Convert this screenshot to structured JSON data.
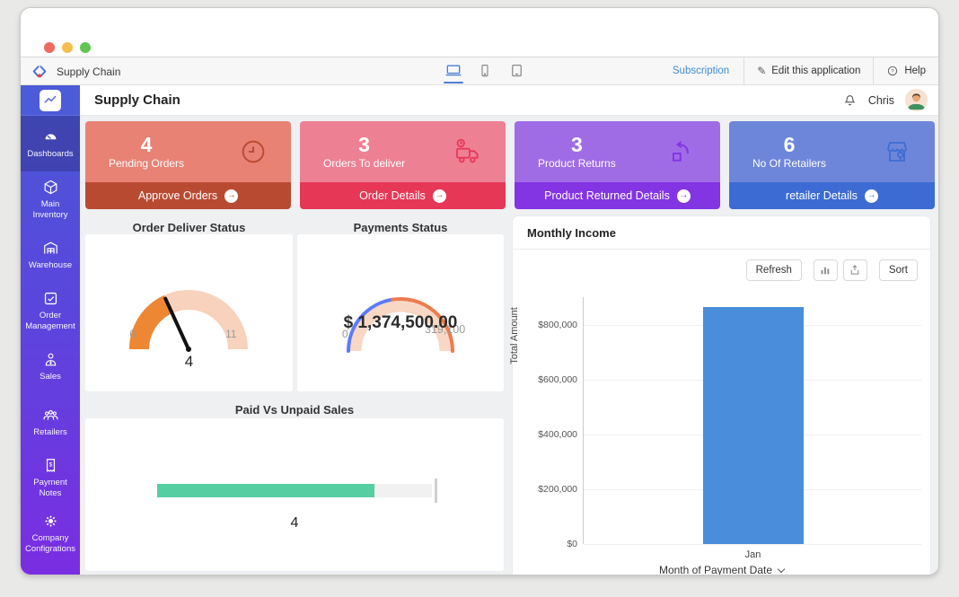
{
  "topbar": {
    "app_name": "Supply Chain",
    "subscription_label": "Subscription",
    "edit_label": "Edit this application",
    "help_label": "Help"
  },
  "header": {
    "title": "Supply Chain",
    "username": "Chris"
  },
  "sidebar": {
    "items": [
      {
        "label": "Dashboards",
        "icon": "gauge-icon",
        "active": true
      },
      {
        "label": "Main Inventory",
        "icon": "cube-icon",
        "active": false
      },
      {
        "label": "Warehouse",
        "icon": "warehouse-icon",
        "active": false
      },
      {
        "label": "Order Management",
        "icon": "checklist-icon",
        "active": false
      },
      {
        "label": "Sales",
        "icon": "sales-person-icon",
        "active": false
      },
      {
        "label": "Retailers",
        "icon": "people-group-icon",
        "active": false
      },
      {
        "label": "Payment Notes",
        "icon": "receipt-icon",
        "active": false
      },
      {
        "label": "Company Configrations",
        "icon": "gear-icon",
        "active": false
      }
    ]
  },
  "stat_cards": [
    {
      "value": "4",
      "label": "Pending Orders",
      "action_label": "Approve Orders",
      "icon": "clock-icon",
      "body_color": "#e88275",
      "footer_color": "#b94a32"
    },
    {
      "value": "3",
      "label": "Orders To deliver",
      "action_label": "Order Details",
      "icon": "delivery-truck-icon",
      "body_color": "#ee8094",
      "footer_color": "#e73757"
    },
    {
      "value": "3",
      "label": "Product Returns",
      "action_label": "Product Returned Details",
      "icon": "return-box-icon",
      "body_color": "#a06ce6",
      "footer_color": "#8334e3"
    },
    {
      "value": "6",
      "label": "No Of Retailers",
      "action_label": "retailer Details",
      "icon": "store-icon",
      "body_color": "#6e86da",
      "footer_color": "#3c6cd3"
    }
  ],
  "panel": {
    "title": "Monthly Income",
    "toolbar": {
      "refresh_label": "Refresh",
      "sort_label": "Sort"
    }
  },
  "chart_data": [
    {
      "type": "gauge",
      "title": "Order Deliver Status",
      "min": 0,
      "max": 11,
      "value": 4,
      "fill_color": "#ed8733",
      "track_color": "#f8d2bc",
      "needle_color": "#111111"
    },
    {
      "type": "gauge",
      "title": "Payments Status",
      "style": "ring",
      "value_label": "$ 1,374,500.00",
      "min_label": "0",
      "max_label": "319,100",
      "track_color": "#f8d8c4",
      "segments": [
        {
          "name": "segment-blue",
          "color": "#5b7cfa",
          "fraction": 0.45
        },
        {
          "name": "segment-orange",
          "color": "#ee7c4e",
          "fraction": 0.55
        }
      ]
    },
    {
      "type": "progress",
      "title": "Paid Vs Unpaid Sales",
      "value": 4,
      "fill_fraction": 0.79,
      "fill_color": "#55cfa2",
      "track_color": "#f1f1f1"
    },
    {
      "type": "bar",
      "title": "Monthly Income",
      "categories": [
        "Jan"
      ],
      "values": [
        865000
      ],
      "xlabel": "Month of Payment Date",
      "ylabel": "Total Amount",
      "ylim": [
        0,
        900000
      ],
      "yticks": [
        {
          "value": 0,
          "label": "$0"
        },
        {
          "value": 200000,
          "label": "$200,000"
        },
        {
          "value": 400000,
          "label": "$400,000"
        },
        {
          "value": 600000,
          "label": "$600,000"
        },
        {
          "value": 800000,
          "label": "$800,000"
        }
      ],
      "bar_color": "#4a8edb",
      "grid": true,
      "legend": false
    }
  ]
}
